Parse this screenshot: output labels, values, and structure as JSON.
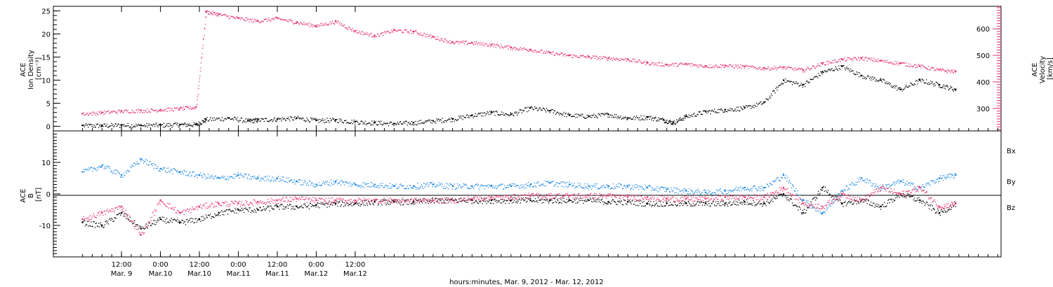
{
  "colors": {
    "density": "#000000",
    "velocity": "#e8336a",
    "bx": "#000000",
    "by": "#1f88e5",
    "bz": "#e8336a"
  },
  "chart_data": [
    {
      "type": "scatter",
      "panel": "top",
      "ylabel_lines": [
        "ACE",
        "Ion Density",
        "[cm⁻³]"
      ],
      "ylabel_right_lines": [
        "ACE",
        "Velocity",
        "[km/s]"
      ],
      "ylim": [
        -1,
        26
      ],
      "yticks": [
        0,
        5,
        10,
        15,
        20,
        25
      ],
      "ylim_right": [
        215,
        685
      ],
      "yticks_right": [
        300,
        400,
        500,
        600
      ],
      "series": [
        {
          "key": "density",
          "axis": "left",
          "color": "#000000",
          "x": [
            0,
            6,
            12,
            18,
            24,
            30,
            35,
            38,
            45,
            51,
            54,
            60,
            66,
            72,
            78,
            84,
            90,
            96,
            102,
            108,
            114,
            120,
            126,
            132,
            138,
            144,
            150,
            156,
            162,
            168,
            174,
            179,
            182,
            186,
            192,
            198,
            204,
            210,
            216,
            222,
            228,
            234,
            240,
            246,
            252,
            258,
            264,
            269
          ],
          "y": [
            0.2,
            0.2,
            0.3,
            0.2,
            0.3,
            0.4,
            0.4,
            1.5,
            1.8,
            1.2,
            1.4,
            1.6,
            1.8,
            1.3,
            1.4,
            1.0,
            0.8,
            0.6,
            0.8,
            1.2,
            1.6,
            2.4,
            3.0,
            2.6,
            4.0,
            3.4,
            2.4,
            2.2,
            2.6,
            1.8,
            2.0,
            1.4,
            0.8,
            2.2,
            3.2,
            3.6,
            4.0,
            5.2,
            10.0,
            9.0,
            11.8,
            13.0,
            11.0,
            10.0,
            8.0,
            10.0,
            9.0,
            8.0
          ]
        },
        {
          "key": "velocity",
          "axis": "right",
          "color": "#e8336a",
          "x": [
            0,
            6,
            12,
            18,
            24,
            30,
            35,
            38,
            42,
            48,
            54,
            60,
            66,
            72,
            78,
            84,
            90,
            96,
            102,
            108,
            114,
            120,
            126,
            132,
            138,
            144,
            150,
            156,
            162,
            168,
            174,
            180,
            186,
            192,
            198,
            204,
            210,
            216,
            222,
            228,
            234,
            240,
            246,
            252,
            258,
            264,
            269
          ],
          "y": [
            280,
            285,
            290,
            292,
            295,
            300,
            305,
            665,
            655,
            640,
            630,
            640,
            625,
            612,
            628,
            592,
            575,
            595,
            590,
            570,
            550,
            548,
            540,
            530,
            522,
            510,
            500,
            495,
            490,
            485,
            472,
            465,
            468,
            460,
            462,
            458,
            452,
            455,
            445,
            470,
            485,
            490,
            480,
            470,
            460,
            445,
            440
          ]
        }
      ]
    },
    {
      "type": "scatter",
      "panel": "bottom",
      "ylabel_lines": [
        "ACE",
        "B",
        "[nT]"
      ],
      "ylim": [
        -20,
        20
      ],
      "yticks": [
        -10,
        0,
        10
      ],
      "legend": [
        "Bx",
        "By",
        "Bz"
      ],
      "series": [
        {
          "key": "bx",
          "label": "Bx",
          "color": "#000000",
          "x": [
            0,
            6,
            12,
            18,
            24,
            30,
            36,
            42,
            48,
            54,
            60,
            66,
            72,
            78,
            84,
            90,
            96,
            102,
            108,
            114,
            120,
            126,
            132,
            138,
            144,
            150,
            156,
            162,
            168,
            174,
            180,
            186,
            192,
            198,
            204,
            210,
            216,
            222,
            228,
            234,
            240,
            246,
            252,
            258,
            264,
            269
          ],
          "y": [
            -9.0,
            -10.0,
            -6.0,
            -11.0,
            -8.0,
            -9.0,
            -8.0,
            -6.0,
            -5.0,
            -5.0,
            -4.0,
            -4.0,
            -3.5,
            -3.0,
            -3.0,
            -2.5,
            -2.5,
            -2.5,
            -2.0,
            -2.0,
            -2.0,
            -2.0,
            -2.0,
            -2.0,
            -2.0,
            -2.0,
            -2.0,
            -2.5,
            -2.5,
            -3.0,
            -3.0,
            -3.0,
            -3.0,
            -3.0,
            -2.5,
            -3.0,
            0.0,
            -6.0,
            2.0,
            -3.0,
            -2.0,
            -4.0,
            0.0,
            -2.0,
            -6.0,
            -3.0
          ]
        },
        {
          "key": "by",
          "label": "By",
          "color": "#1f88e5",
          "x": [
            0,
            6,
            12,
            18,
            24,
            30,
            36,
            42,
            48,
            54,
            60,
            66,
            72,
            78,
            84,
            90,
            96,
            102,
            108,
            114,
            120,
            126,
            132,
            138,
            144,
            150,
            156,
            162,
            168,
            174,
            180,
            186,
            192,
            198,
            204,
            210,
            216,
            222,
            228,
            234,
            240,
            246,
            252,
            258,
            264,
            269
          ],
          "y": [
            7.0,
            9.0,
            6.0,
            11.0,
            8.0,
            7.0,
            6.0,
            5.0,
            6.0,
            5.0,
            5.0,
            4.0,
            3.0,
            4.0,
            3.0,
            3.0,
            2.5,
            2.5,
            3.0,
            2.5,
            2.5,
            2.5,
            2.5,
            3.0,
            3.5,
            3.0,
            2.5,
            2.5,
            2.5,
            2.0,
            1.5,
            1.0,
            0.5,
            1.0,
            2.0,
            2.0,
            6.0,
            -2.0,
            -6.0,
            1.0,
            5.0,
            2.0,
            4.0,
            2.0,
            5.0,
            6.0
          ]
        },
        {
          "key": "bz",
          "label": "Bz",
          "color": "#e8336a",
          "x": [
            0,
            6,
            12,
            18,
            24,
            30,
            36,
            42,
            48,
            54,
            60,
            66,
            72,
            78,
            84,
            90,
            96,
            102,
            108,
            114,
            120,
            126,
            132,
            138,
            144,
            150,
            156,
            162,
            168,
            174,
            180,
            186,
            192,
            198,
            204,
            210,
            216,
            222,
            228,
            234,
            240,
            246,
            252,
            258,
            264,
            269
          ],
          "y": [
            -8.0,
            -6.0,
            -4.0,
            -13.0,
            -2.0,
            -6.0,
            -4.0,
            -3.0,
            -3.0,
            -2.5,
            -2.0,
            -1.5,
            -2.0,
            -2.0,
            -2.0,
            -2.0,
            -2.0,
            -2.0,
            -2.0,
            -2.0,
            -1.5,
            -1.0,
            -1.0,
            -0.5,
            -0.5,
            -0.5,
            -0.5,
            -0.5,
            -1.0,
            -1.0,
            -1.5,
            -1.5,
            -1.5,
            -1.0,
            -1.0,
            -1.0,
            2.0,
            -3.0,
            -4.0,
            0.0,
            -2.0,
            2.0,
            0.0,
            2.0,
            -4.0,
            -3.0
          ]
        }
      ]
    }
  ],
  "x_axis": {
    "xlim": [
      -9,
      283
    ],
    "ticks": [
      {
        "x": 12,
        "line1": "12:00",
        "line2": "Mar. 9"
      },
      {
        "x": 24,
        "line1": "0:00",
        "line2": "Mar.10"
      },
      {
        "x": 36,
        "line1": "12:00",
        "line2": "Mar.10"
      },
      {
        "x": 48,
        "line1": "0:00",
        "line2": "Mar.11"
      },
      {
        "x": 60,
        "line1": "12:00",
        "line2": "Mar.11"
      },
      {
        "x": 72,
        "line1": "0:00",
        "line2": "Mar.12"
      },
      {
        "x": 84,
        "line1": "12:00",
        "line2": "Mar.12"
      }
    ],
    "title": "hours:minutes, Mar.  9, 2012 - Mar. 12, 2012"
  }
}
